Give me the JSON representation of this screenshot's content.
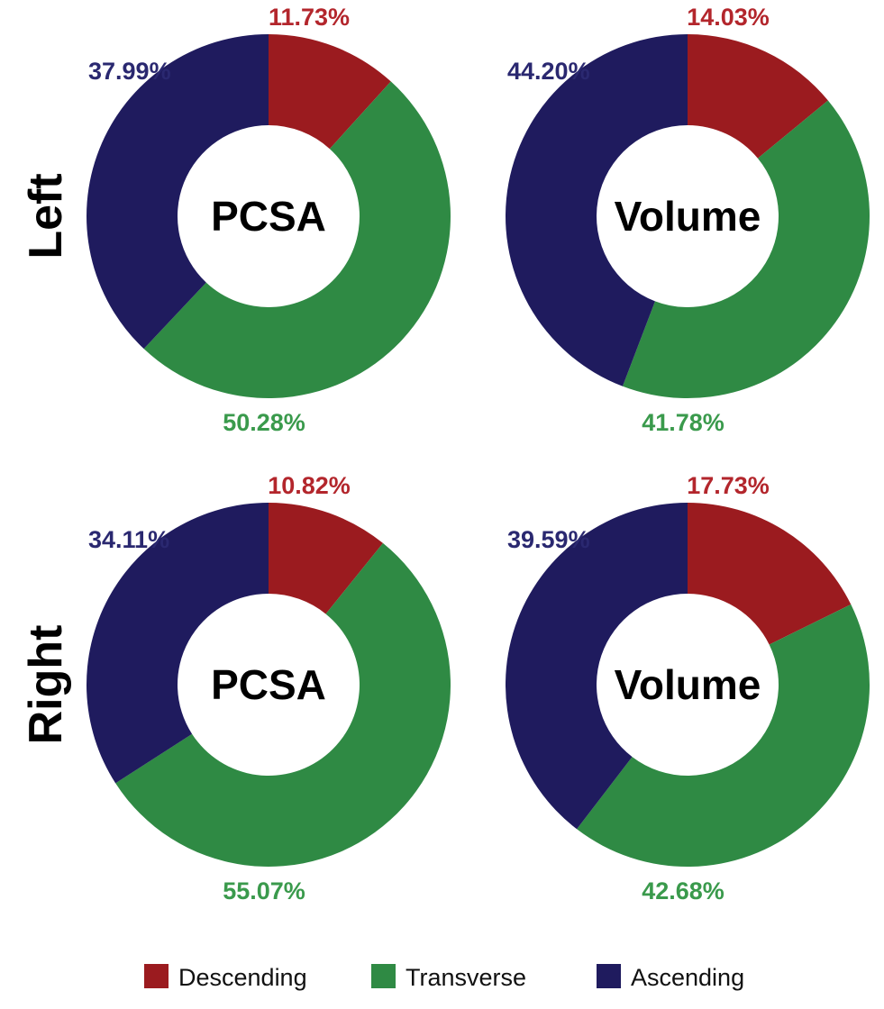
{
  "chart_data": {
    "type": "pie",
    "donut": true,
    "row_labels": [
      "Left",
      "Right"
    ],
    "legend": {
      "placement": "bottom",
      "entries": [
        {
          "label": "Descending",
          "color": "#9b1b1f"
        },
        {
          "label": "Transverse",
          "color": "#2f8a44"
        },
        {
          "label": "Ascending",
          "color": "#1f1b5e"
        }
      ]
    },
    "label_colors": {
      "Descending": "#b3262c",
      "Transverse": "#3a9a4c",
      "Ascending": "#2a2870"
    },
    "charts": [
      {
        "row": "Left",
        "center_label": "PCSA",
        "values": {
          "Descending": 11.73,
          "Transverse": 50.28,
          "Ascending": 37.99
        },
        "labels": {
          "Descending": "11.73%",
          "Transverse": "50.28%",
          "Ascending": "37.99%"
        }
      },
      {
        "row": "Left",
        "center_label": "Volume",
        "values": {
          "Descending": 14.03,
          "Transverse": 41.78,
          "Ascending": 44.2
        },
        "labels": {
          "Descending": "14.03%",
          "Transverse": "41.78%",
          "Ascending": "44.20%"
        }
      },
      {
        "row": "Right",
        "center_label": "PCSA",
        "values": {
          "Descending": 10.82,
          "Transverse": 55.07,
          "Ascending": 34.11
        },
        "labels": {
          "Descending": "10.82%",
          "Transverse": "55.07%",
          "Ascending": "34.11%"
        }
      },
      {
        "row": "Right",
        "center_label": "Volume",
        "values": {
          "Descending": 17.73,
          "Transverse": 42.68,
          "Ascending": 39.59
        },
        "labels": {
          "Descending": "17.73%",
          "Transverse": "42.68%",
          "Ascending": "39.59%"
        }
      }
    ]
  }
}
